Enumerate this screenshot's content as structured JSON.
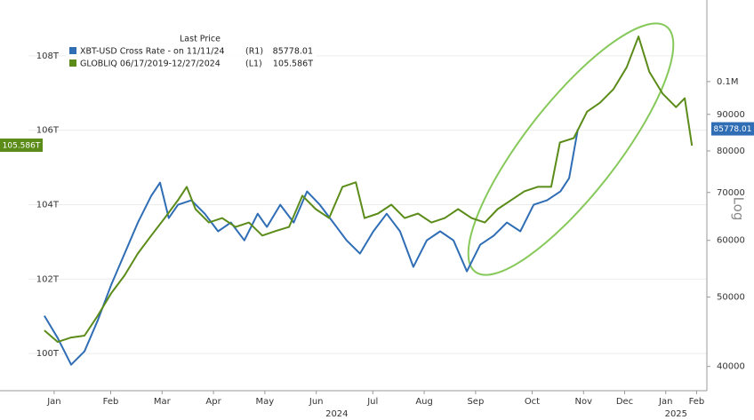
{
  "chart_data": {
    "type": "line",
    "legend_title": "Last Price",
    "xlim": [
      0,
      13.2
    ],
    "xticks": [
      {
        "value": 0.5,
        "label": "Jan"
      },
      {
        "value": 1.6,
        "label": "Feb"
      },
      {
        "value": 2.6,
        "label": "Mar"
      },
      {
        "value": 3.6,
        "label": "Apr"
      },
      {
        "value": 4.6,
        "label": "May"
      },
      {
        "value": 5.6,
        "label": "Jun"
      },
      {
        "value": 6.7,
        "label": "Jul"
      },
      {
        "value": 7.7,
        "label": "Aug"
      },
      {
        "value": 8.7,
        "label": "Sep"
      },
      {
        "value": 9.8,
        "label": "Oct"
      },
      {
        "value": 10.8,
        "label": "Nov"
      },
      {
        "value": 11.6,
        "label": "Dec"
      },
      {
        "value": 12.4,
        "label": "Jan"
      },
      {
        "value": 13.0,
        "label": "Feb"
      }
    ],
    "year_ticks": [
      {
        "value": 6.0,
        "label": "2024"
      },
      {
        "value": 12.6,
        "label": "2025"
      }
    ],
    "ylim": [
      99,
      109.5
    ],
    "yticks": [
      {
        "value": 100,
        "label": "100T"
      },
      {
        "value": 102,
        "label": "102T"
      },
      {
        "value": 104,
        "label": "104T"
      },
      {
        "value": 106,
        "label": "106T"
      },
      {
        "value": 108,
        "label": "108T"
      }
    ],
    "y2lim": [
      37000,
      130000
    ],
    "y2_log": true,
    "y2label": "Log",
    "y2ticks": [
      40000,
      50000,
      60000,
      70000,
      80000,
      90000,
      {
        "value": 100000,
        "label": "0.1M"
      }
    ],
    "grid": true,
    "series": [
      {
        "name": "XBT-USD Cross Rate -  on 11/11/24",
        "tag": "(R1)",
        "axis": "y2",
        "color": "#2f6db5",
        "x": [
          0.31,
          0.57,
          0.83,
          1.09,
          1.35,
          1.61,
          1.87,
          2.13,
          2.39,
          2.56,
          2.73,
          2.91,
          3.17,
          3.43,
          3.69,
          3.94,
          4.2,
          4.46,
          4.64,
          4.9,
          5.16,
          5.42,
          5.67,
          5.93,
          6.19,
          6.45,
          6.71,
          6.97,
          7.23,
          7.49,
          7.75,
          8.01,
          8.27,
          8.53,
          8.79,
          9.05,
          9.31,
          9.57,
          9.83,
          10.09,
          10.35,
          10.52,
          10.69
        ],
        "values": [
          47080,
          43830,
          40230,
          41990,
          46410,
          52020,
          57500,
          63550,
          69240,
          72250,
          64460,
          67280,
          68250,
          65370,
          61770,
          63550,
          60010,
          65370,
          62650,
          67280,
          63550,
          70230,
          67280,
          63550,
          60010,
          57500,
          61770,
          65370,
          61770,
          55090,
          60010,
          61770,
          60010,
          54310,
          59170,
          60880,
          63550,
          61770,
          67280,
          68250,
          70230,
          73310,
          85778.01
        ]
      },
      {
        "name": "GLOBLIQ 06/17/2019-12/27/2024",
        "tag": "(L1)",
        "axis": "y",
        "color": "#5b8c1a",
        "x": [
          0.31,
          0.57,
          0.83,
          1.09,
          1.35,
          1.61,
          1.87,
          2.13,
          2.39,
          2.65,
          2.91,
          3.08,
          3.25,
          3.51,
          3.77,
          4.03,
          4.29,
          4.55,
          4.81,
          5.07,
          5.33,
          5.59,
          5.85,
          6.11,
          6.37,
          6.54,
          6.8,
          7.06,
          7.32,
          7.58,
          7.84,
          8.1,
          8.36,
          8.62,
          8.88,
          9.13,
          9.39,
          9.65,
          9.91,
          10.17,
          10.34,
          10.61,
          10.87,
          11.12,
          11.38,
          11.64,
          11.87,
          12.08,
          12.34,
          12.6,
          12.77,
          12.91
        ],
        "values": [
          100.62,
          100.31,
          100.43,
          100.48,
          101.02,
          101.62,
          102.1,
          102.69,
          103.17,
          103.64,
          104.12,
          104.48,
          103.88,
          103.52,
          103.64,
          103.4,
          103.52,
          103.17,
          103.29,
          103.4,
          104.24,
          103.88,
          103.64,
          104.48,
          104.6,
          103.64,
          103.76,
          104.0,
          103.64,
          103.76,
          103.52,
          103.64,
          103.88,
          103.64,
          103.52,
          103.88,
          104.12,
          104.36,
          104.48,
          104.48,
          105.67,
          105.79,
          106.5,
          106.74,
          107.1,
          107.69,
          108.52,
          107.57,
          106.98,
          106.62,
          106.86,
          105.586
        ],
        "value_labels": [
          null,
          null,
          null,
          null,
          null,
          null,
          null,
          null,
          null,
          null,
          null,
          null,
          null,
          null,
          null,
          null,
          null,
          null,
          null,
          null,
          null,
          null,
          null,
          null,
          null,
          null,
          null,
          null,
          null,
          null,
          null,
          null,
          null,
          null,
          null,
          null,
          null,
          null,
          null,
          null,
          null,
          null,
          null,
          null,
          null,
          null,
          null,
          null,
          null,
          null,
          null,
          "105.586T"
        ]
      }
    ]
  }
}
